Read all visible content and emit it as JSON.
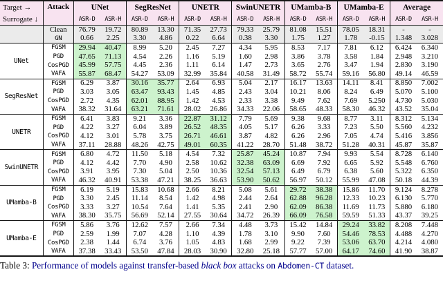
{
  "colors": {
    "rule": "#151515",
    "header_bg": "#f8e3f0",
    "baseline_bg": "#ebebeb",
    "highlight_bg": "#cdf3cd",
    "caption_blue": "#00008b"
  },
  "table": {
    "corner": {
      "target": "Target →",
      "surrogate": "Surrogate ↓"
    },
    "attack_header": "Attack",
    "subcolumns": [
      "ASR-D",
      "ASR-H"
    ],
    "models": [
      "UNet",
      "SegResNet",
      "UNETR",
      "SwinUNETR",
      "UMamba-B",
      "UMamba-E",
      "Average"
    ],
    "baseline_rows": [
      {
        "attack": "Clean",
        "mono": false,
        "values": [
          "76.79",
          "19.72",
          "80.89",
          "13.30",
          "71.35",
          "27.73",
          "79.33",
          "25.79",
          "81.08",
          "15.51",
          "78.05",
          "18.31",
          "-",
          "-"
        ]
      },
      {
        "attack": "GN",
        "mono": true,
        "values": [
          "0.66",
          "2.25",
          "3.30",
          "4.86",
          "0.22",
          "6.64",
          "0.38",
          "3.30",
          "1.75",
          "1.27",
          "1.78",
          "-0.15",
          "1.348",
          "3.028"
        ]
      }
    ],
    "groups": [
      {
        "surrogate": "UNet",
        "highlight_model": 0,
        "rows": [
          {
            "attack": "FGSM",
            "values": [
              "29.94",
              "40.47",
              "8.99",
              "5.20",
              "2.45",
              "7.27",
              "4.34",
              "5.95",
              "8.53",
              "7.17",
              "7.81",
              "6.12",
              "6.424",
              "6.340"
            ]
          },
          {
            "attack": "PGD",
            "values": [
              "47.65",
              "71.13",
              "4.54",
              "2.26",
              "1.16",
              "5.19",
              "1.60",
              "2.98",
              "3.86",
              "3.78",
              "3.58",
              "1.84",
              "2.948",
              "3.210"
            ]
          },
          {
            "attack": "CosPGD",
            "values": [
              "45.99",
              "57.75",
              "4.45",
              "2.36",
              "1.11",
              "6.14",
              "1.47",
              "2.73",
              "3.65",
              "2.76",
              "3.47",
              "1.94",
              "2.830",
              "3.190"
            ]
          },
          {
            "attack": "VAFA",
            "values": [
              "55.87",
              "68.47",
              "54.27",
              "53.09",
              "32.99",
              "35.84",
              "40.58",
              "31.49",
              "58.72",
              "55.74",
              "59.16",
              "56.80",
              "49.14",
              "46.59"
            ]
          }
        ]
      },
      {
        "surrogate": "SegResNet",
        "highlight_model": 1,
        "rows": [
          {
            "attack": "FGSM",
            "values": [
              "6.29",
              "3.87",
              "30.16",
              "35.77",
              "2.64",
              "6.93",
              "5.04",
              "2.17",
              "16.17",
              "13.63",
              "14.11",
              "8.41",
              "8.850",
              "7.002"
            ]
          },
          {
            "attack": "PGD",
            "values": [
              "3.03",
              "3.05",
              "63.47",
              "93.43",
              "1.45",
              "4.85",
              "2.43",
              "3.04",
              "10.21",
              "8.06",
              "8.24",
              "6.49",
              "5.070",
              "5.100"
            ]
          },
          {
            "attack": "CosPGD",
            "values": [
              "2.72",
              "4.35",
              "62.01",
              "88.95",
              "1.42",
              "4.53",
              "2.33",
              "3.38",
              "9.49",
              "7.62",
              "7.69",
              "5.250",
              "4.730",
              "5.030"
            ]
          },
          {
            "attack": "VAFA",
            "values": [
              "38.32",
              "31.64",
              "63.21",
              "71.61",
              "28.02",
              "26.86",
              "34.33",
              "22.06",
              "58.65",
              "48.33",
              "58.30",
              "46.32",
              "43.52",
              "35.04"
            ]
          }
        ]
      },
      {
        "surrogate": "UNETR",
        "highlight_model": 2,
        "rows": [
          {
            "attack": "FGSM",
            "values": [
              "6.41",
              "3.83",
              "9.21",
              "3.36",
              "22.87",
              "31.12",
              "7.79",
              "5.69",
              "9.38",
              "9.68",
              "8.77",
              "3.11",
              "8.312",
              "5.134"
            ]
          },
          {
            "attack": "PGD",
            "values": [
              "4.22",
              "3.27",
              "6.04",
              "3.89",
              "26.52",
              "48.35",
              "4.05",
              "5.17",
              "6.26",
              "3.33",
              "7.23",
              "5.50",
              "5.560",
              "4.232"
            ]
          },
          {
            "attack": "CosPGD",
            "values": [
              "4.12",
              "3.01",
              "5.78",
              "3.75",
              "26.71",
              "46.61",
              "3.87",
              "4.82",
              "6.26",
              "2.96",
              "7.05",
              "4.74",
              "5.416",
              "3.856"
            ]
          },
          {
            "attack": "VAFA",
            "values": [
              "37.11",
              "28.88",
              "48.26",
              "42.75",
              "49.01",
              "60.35",
              "41.22",
              "28.70",
              "51.48",
              "38.72",
              "51.28",
              "40.31",
              "45.87",
              "35.87"
            ]
          }
        ]
      },
      {
        "surrogate": "SwinUNETR",
        "highlight_model": 3,
        "rows": [
          {
            "attack": "FGSM",
            "values": [
              "6.80",
              "4.72",
              "11.50",
              "5.18",
              "4.54",
              "7.32",
              "25.87",
              "45.24",
              "10.87",
              "7.94",
              "9.93",
              "5.54",
              "8.728",
              "6.140"
            ]
          },
          {
            "attack": "PGD",
            "values": [
              "4.12",
              "4.42",
              "7.70",
              "4.90",
              "2.58",
              "10.62",
              "32.38",
              "63.09",
              "6.69",
              "7.92",
              "6.65",
              "5.92",
              "5.548",
              "6.760"
            ]
          },
          {
            "attack": "CosPGD",
            "values": [
              "3.91",
              "3.95",
              "7.30",
              "5.04",
              "2.50",
              "10.36",
              "32.54",
              "57.13",
              "6.49",
              "6.79",
              "6.38",
              "5.60",
              "5.322",
              "6.350"
            ]
          },
          {
            "attack": "VAFA",
            "values": [
              "46.32",
              "40.91",
              "53.38",
              "47.21",
              "38.25",
              "36.63",
              "53.90",
              "50.62",
              "56.97",
              "50.12",
              "55.99",
              "47.08",
              "50.18",
              "44.39"
            ]
          }
        ]
      },
      {
        "surrogate": "UMamba-B",
        "highlight_model": 4,
        "rows": [
          {
            "attack": "FGSM",
            "values": [
              "6.19",
              "5.19",
              "15.83",
              "10.68",
              "2.66",
              "8.21",
              "5.08",
              "5.61",
              "29.72",
              "38.38",
              "15.86",
              "11.70",
              "9.124",
              "8.278"
            ]
          },
          {
            "attack": "PGD",
            "values": [
              "3.30",
              "2.45",
              "11.14",
              "8.54",
              "1.42",
              "4.98",
              "2.44",
              "2.64",
              "62.88",
              "96.28",
              "12.33",
              "10.23",
              "6.130",
              "5.770"
            ]
          },
          {
            "attack": "CosPGD",
            "values": [
              "3.33",
              "3.27",
              "10.54",
              "7.64",
              "1.41",
              "5.35",
              "2.41",
              "2.90",
              "62.09",
              "86.38",
              "11.69",
              "11.73",
              "5.880",
              "6.180"
            ]
          },
          {
            "attack": "VAFA",
            "values": [
              "38.30",
              "35.75",
              "56.69",
              "52.14",
              "27.55",
              "30.64",
              "34.72",
              "26.39",
              "66.09",
              "76.58",
              "59.59",
              "51.33",
              "43.37",
              "39.25"
            ]
          }
        ]
      },
      {
        "surrogate": "UMamba-E",
        "highlight_model": 5,
        "rows": [
          {
            "attack": "FGSM",
            "values": [
              "5.86",
              "3.76",
              "12.62",
              "7.57",
              "2.66",
              "7.34",
              "4.48",
              "3.73",
              "15.42",
              "14.84",
              "29.24",
              "33.82",
              "8.208",
              "7.448"
            ]
          },
          {
            "attack": "PGD",
            "values": [
              "2.59",
              "1.99",
              "7.07",
              "4.28",
              "1.10",
              "4.39",
              "1.78",
              "3.10",
              "9.90",
              "7.60",
              "54.46",
              "78.53",
              "4.488",
              "4.270"
            ]
          },
          {
            "attack": "CosPGD",
            "values": [
              "2.38",
              "1.44",
              "6.74",
              "3.76",
              "1.05",
              "4.83",
              "1.68",
              "2.99",
              "9.22",
              "7.39",
              "53.06",
              "63.70",
              "4.214",
              "4.080"
            ]
          },
          {
            "attack": "VAFA",
            "values": [
              "37.38",
              "33.43",
              "53.50",
              "47.84",
              "28.03",
              "30.90",
              "32.80",
              "25.18",
              "57.77",
              "57.00",
              "64.17",
              "74.60",
              "41.90",
              "38.87"
            ]
          }
        ]
      }
    ]
  },
  "caption": {
    "label": "Table 3:",
    "text_before": " Performance of models against transfer-based ",
    "italic": "black box",
    "text_middle": " attacks on ",
    "code": "Abdomen-CT",
    "text_after": " dataset."
  }
}
